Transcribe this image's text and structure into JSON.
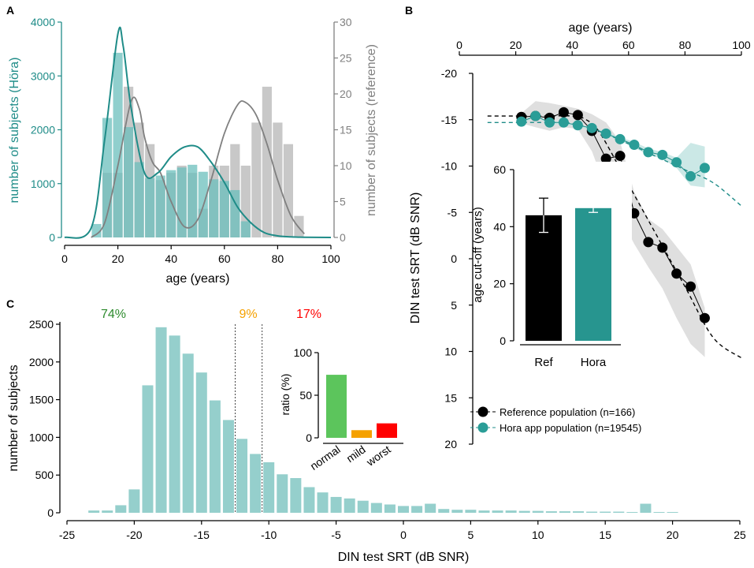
{
  "colors": {
    "teal": "#1f8c88",
    "teal_bar": "#6bbfbc",
    "teal_bar_light": "#95cfcc",
    "gray_bar": "#c8c8c8",
    "gray_line": "#808080",
    "black": "#000000",
    "green": "#2e8b2e",
    "green_bar": "#5cc55c",
    "orange": "#f5a100",
    "red": "#ff0000",
    "band_gray": "#dcdcdc",
    "band_teal": "#c5e5e3"
  },
  "panels": {
    "a": "A",
    "b": "B",
    "c": "C"
  },
  "chart_data": [
    {
      "id": "A",
      "type": "bar",
      "xlabel": "age (years)",
      "ylabel_left": "number of subjects (Höra)",
      "ylabel_right": "number of subjects (reference)",
      "xlim": [
        0,
        100
      ],
      "ylim_left": [
        0,
        4000
      ],
      "ylim_right": [
        0,
        30
      ],
      "x_ticks": [
        0,
        20,
        40,
        60,
        80,
        100
      ],
      "y_left_ticks": [
        0,
        1000,
        2000,
        3000,
        4000
      ],
      "y_right_ticks": [
        0,
        5,
        10,
        15,
        20,
        25,
        30
      ],
      "bin_width": 4,
      "series": [
        {
          "name": "Hora",
          "axis": "left",
          "x": [
            12,
            16,
            20,
            24,
            28,
            32,
            36,
            40,
            44,
            48,
            52,
            56,
            60,
            64,
            68
          ],
          "values": [
            250,
            2220,
            3430,
            2050,
            1400,
            1100,
            1150,
            1250,
            1300,
            1350,
            1220,
            1080,
            1050,
            880,
            300
          ]
        },
        {
          "name": "Reference",
          "axis": "right",
          "x": [
            16,
            20,
            24,
            28,
            32,
            36,
            40,
            44,
            48,
            52,
            56,
            60,
            64,
            68,
            72,
            76,
            80,
            84,
            88
          ],
          "values": [
            9,
            9,
            21,
            16,
            13,
            8,
            9,
            10,
            9,
            4,
            10,
            10,
            13,
            10,
            16,
            21,
            16,
            13,
            3
          ]
        }
      ],
      "fits": [
        {
          "name": "Hora fit",
          "axis": "left",
          "x": [
            0,
            10,
            15,
            20,
            22,
            25,
            30,
            35,
            40,
            45,
            50,
            55,
            60,
            65,
            70,
            75,
            80,
            85,
            90,
            100
          ],
          "y": [
            0,
            180,
            1800,
            3780,
            3550,
            2400,
            1200,
            1200,
            1500,
            1680,
            1680,
            1400,
            1020,
            560,
            270,
            90,
            30,
            10,
            5,
            0
          ]
        },
        {
          "name": "Reference fit",
          "axis": "right",
          "x": [
            10,
            15,
            20,
            25,
            28,
            30,
            33,
            36,
            40,
            45,
            50,
            55,
            60,
            65,
            68,
            72,
            76,
            80,
            85,
            90
          ],
          "y": [
            0,
            2,
            10,
            19,
            18,
            14,
            10.5,
            9,
            5,
            1.5,
            2.5,
            8,
            14.5,
            18.5,
            18.8,
            17,
            13,
            8,
            3,
            0.5
          ]
        }
      ]
    },
    {
      "id": "B",
      "type": "line",
      "xlabel": "age (years)",
      "ylabel": "DIN test SRT (dB SNR)",
      "xlim": [
        0,
        100
      ],
      "ylim": [
        -20,
        20
      ],
      "y_reversed": true,
      "x_ticks": [
        0,
        20,
        40,
        60,
        80,
        100
      ],
      "y_ticks": [
        -20,
        -15,
        -10,
        -5,
        0,
        5,
        10,
        15,
        20
      ],
      "series": [
        {
          "name": "Reference population (n=166)",
          "x": [
            22,
            27,
            32,
            37,
            42,
            47,
            52,
            57,
            62,
            67,
            72,
            77,
            82,
            87
          ],
          "y": [
            -15.3,
            -15.4,
            -15.2,
            -15.8,
            -15.5,
            -13.8,
            -10.8,
            -11.1,
            -4.9,
            -1.8,
            -1.2,
            1.6,
            3.0,
            6.4
          ]
        },
        {
          "name": "Hora app population (n=19545)",
          "x": [
            22,
            27,
            32,
            37,
            42,
            47,
            52,
            57,
            62,
            67,
            72,
            77,
            82,
            87
          ],
          "y": [
            -14.8,
            -15.4,
            -14.7,
            -14.7,
            -14.4,
            -14.1,
            -13.5,
            -12.9,
            -12.3,
            -11.5,
            -11.2,
            -10.4,
            -8.9,
            -9.8
          ]
        }
      ],
      "dashed_fits": [
        {
          "name": "Reference fit",
          "x": [
            10,
            20,
            30,
            40,
            45,
            50,
            60,
            70,
            80,
            90,
            100
          ],
          "y": [
            -15.4,
            -15.4,
            -15.4,
            -15.4,
            -15.0,
            -13.5,
            -8.0,
            -2.5,
            3.0,
            8.5,
            10.7
          ]
        },
        {
          "name": "Hora fit",
          "x": [
            10,
            20,
            30,
            40,
            50,
            60,
            70,
            80,
            90,
            100
          ],
          "y": [
            -14.7,
            -14.7,
            -14.7,
            -14.6,
            -13.7,
            -12.4,
            -11.0,
            -9.6,
            -8.2,
            -5.7
          ]
        }
      ],
      "bands": [
        {
          "name": "Reference band",
          "x": [
            22,
            27,
            32,
            37,
            42,
            47,
            52,
            57,
            62,
            67,
            72,
            77,
            82,
            87
          ],
          "lower": [
            -15.7,
            -17.0,
            -16.8,
            -16.5,
            -16.2,
            -15.6,
            -14.7,
            -12.6,
            -7.2,
            -4.3,
            -3.2,
            -1.3,
            0.6,
            5.3
          ],
          "upper": [
            -14.6,
            -14.2,
            -13.8,
            -14.2,
            -14.0,
            -11.6,
            -7.5,
            -4.5,
            -1.6,
            0.9,
            3.2,
            6.4,
            9.2,
            10.6
          ]
        },
        {
          "name": "Hora band",
          "x": [
            22,
            27,
            32,
            37,
            42,
            47,
            52,
            57,
            62,
            67,
            72,
            77,
            82,
            87
          ],
          "lower": [
            -14.9,
            -15.5,
            -14.8,
            -14.8,
            -14.5,
            -14.2,
            -13.7,
            -13.1,
            -12.6,
            -11.9,
            -11.5,
            -10.9,
            -12.5,
            -12.1
          ],
          "upper": [
            -14.6,
            -15.2,
            -14.5,
            -14.5,
            -14.2,
            -13.9,
            -13.3,
            -12.7,
            -12.0,
            -11.2,
            -10.8,
            -9.8,
            -7.9,
            -7.7
          ]
        }
      ],
      "legend": [
        "Reference population (n=166)",
        "Hora app population (n=19545)"
      ]
    },
    {
      "id": "B-inset",
      "type": "bar",
      "ylabel": "age cut-off (years)",
      "categories": [
        "Ref",
        "Hora"
      ],
      "values": [
        44,
        46.5
      ],
      "errors": [
        [
          38,
          50
        ],
        [
          45,
          48
        ]
      ],
      "ylim": [
        0,
        60
      ],
      "y_ticks": [
        0,
        20,
        40,
        60
      ]
    },
    {
      "id": "C",
      "type": "bar",
      "xlabel": "DIN test SRT (dB SNR)",
      "ylabel": "number of subjects",
      "xlim": [
        -25,
        25
      ],
      "ylim": [
        0,
        2500
      ],
      "x_ticks": [
        -25,
        -20,
        -15,
        -10,
        -5,
        0,
        5,
        10,
        15,
        20,
        25
      ],
      "y_ticks": [
        0,
        500,
        1000,
        1500,
        2000,
        2500
      ],
      "bin_width": 1,
      "x": [
        -23,
        -22,
        -21,
        -20,
        -19,
        -18,
        -17,
        -16,
        -15,
        -14,
        -13,
        -12,
        -11,
        -10,
        -9,
        -8,
        -7,
        -6,
        -5,
        -4,
        -3,
        -2,
        -1,
        0,
        1,
        2,
        3,
        4,
        5,
        6,
        7,
        8,
        9,
        10,
        11,
        12,
        13,
        14,
        15,
        16,
        17,
        18,
        19,
        20
      ],
      "values": [
        30,
        30,
        100,
        310,
        1690,
        2460,
        2350,
        2110,
        1860,
        1490,
        1230,
        980,
        780,
        670,
        510,
        460,
        340,
        270,
        210,
        190,
        160,
        130,
        110,
        90,
        90,
        120,
        50,
        40,
        40,
        30,
        30,
        30,
        25,
        25,
        20,
        20,
        20,
        15,
        15,
        15,
        10,
        120,
        10,
        10
      ],
      "thresholds": [
        -12.5,
        -10.5
      ],
      "annotations": [
        {
          "text": "74%",
          "color": "#2e8b2e"
        },
        {
          "text": "9%",
          "color": "#f5a100"
        },
        {
          "text": "17%",
          "color": "#ff0000"
        }
      ]
    },
    {
      "id": "C-inset",
      "type": "bar",
      "ylabel": "ratio (%)",
      "categories": [
        "normal",
        "mild",
        "worst"
      ],
      "values": [
        74,
        9,
        17
      ],
      "colors": [
        "#5cc55c",
        "#f5a100",
        "#ff0000"
      ],
      "ylim": [
        0,
        100
      ],
      "y_ticks": [
        0,
        50,
        100
      ]
    }
  ]
}
